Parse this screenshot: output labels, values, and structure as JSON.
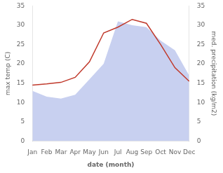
{
  "chart_data": {
    "type": "line",
    "categories": [
      "Jan",
      "Feb",
      "Mar",
      "Apr",
      "May",
      "Jun",
      "Jul",
      "Aug",
      "Sep",
      "Oct",
      "Nov",
      "Dec"
    ],
    "xlabel": "date (month)",
    "ylabel": "max temp (C)",
    "y2label": "med. precipitation (kg/m2)",
    "series": [
      {
        "type": "area",
        "axis": "y2",
        "color": "#c8d0f0",
        "values": [
          13.0,
          11.5,
          11.0,
          12.0,
          16.0,
          20.0,
          31.0,
          30.0,
          29.5,
          26.0,
          23.5,
          17.0
        ]
      },
      {
        "type": "line",
        "color": "#c0392b",
        "values": [
          14.5,
          14.8,
          15.2,
          16.5,
          20.5,
          28.0,
          29.5,
          31.5,
          30.5,
          25.0,
          19.0,
          15.5
        ]
      }
    ],
    "ylim": [
      0,
      35
    ],
    "yticks": [
      0,
      5,
      10,
      15,
      20,
      25,
      30,
      35
    ],
    "y2lim": [
      0,
      35
    ],
    "y2ticks": [
      0,
      5,
      10,
      15,
      20,
      25,
      30,
      35
    ],
    "grid": false
  }
}
